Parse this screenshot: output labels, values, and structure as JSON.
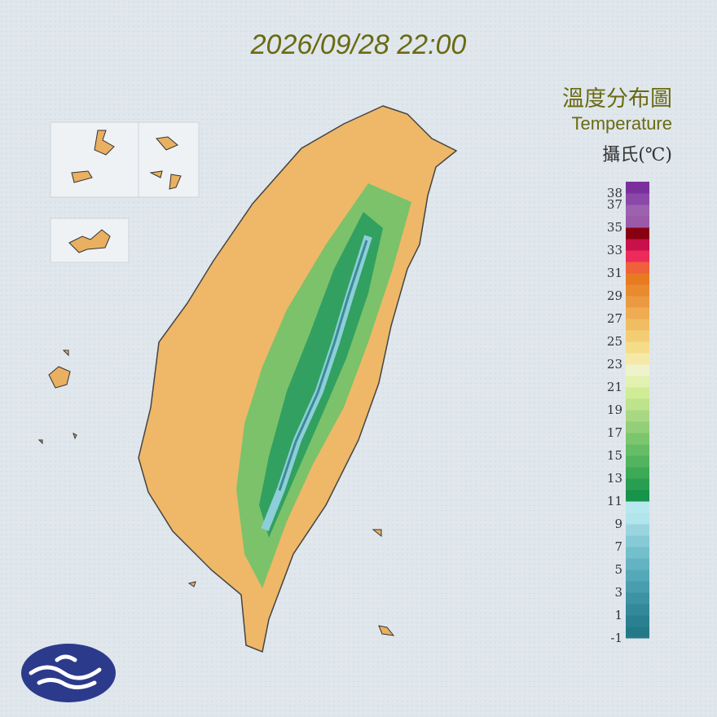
{
  "title": "2026/09/28 22:00",
  "legend": {
    "title": "溫度分布圖",
    "subtitle": "Temperature",
    "unit": "攝氏(℃)",
    "lim": [
      -1,
      39
    ],
    "ticks": [
      38,
      37,
      35,
      33,
      31,
      29,
      27,
      25,
      23,
      21,
      19,
      17,
      15,
      13,
      11,
      9,
      7,
      5,
      3,
      1,
      -1
    ],
    "colors": [
      "#237a86",
      "#2a8090",
      "#33899a",
      "#3d93a4",
      "#489dae",
      "#55a8b8",
      "#63b3c2",
      "#73bfcc",
      "#86cad6",
      "#9ad5df",
      "#b2e4ec",
      "#b8e8ef",
      "#17934a",
      "#2a9e50",
      "#3daa57",
      "#52b45e",
      "#67bd66",
      "#7cc66e",
      "#92cf78",
      "#a8d982",
      "#bde38c",
      "#d0ec97",
      "#e2f1b0",
      "#eef3cc",
      "#f6e9a8",
      "#f5dc88",
      "#f3cd74",
      "#f1bd62",
      "#efac52",
      "#ec9a42",
      "#ea8a2e",
      "#e87a20",
      "#f0603a",
      "#ee2a5a",
      "#c8104a",
      "#880010",
      "#9a5aa8",
      "#9c62b0",
      "#8c48a8",
      "#7a309c"
    ]
  }
}
